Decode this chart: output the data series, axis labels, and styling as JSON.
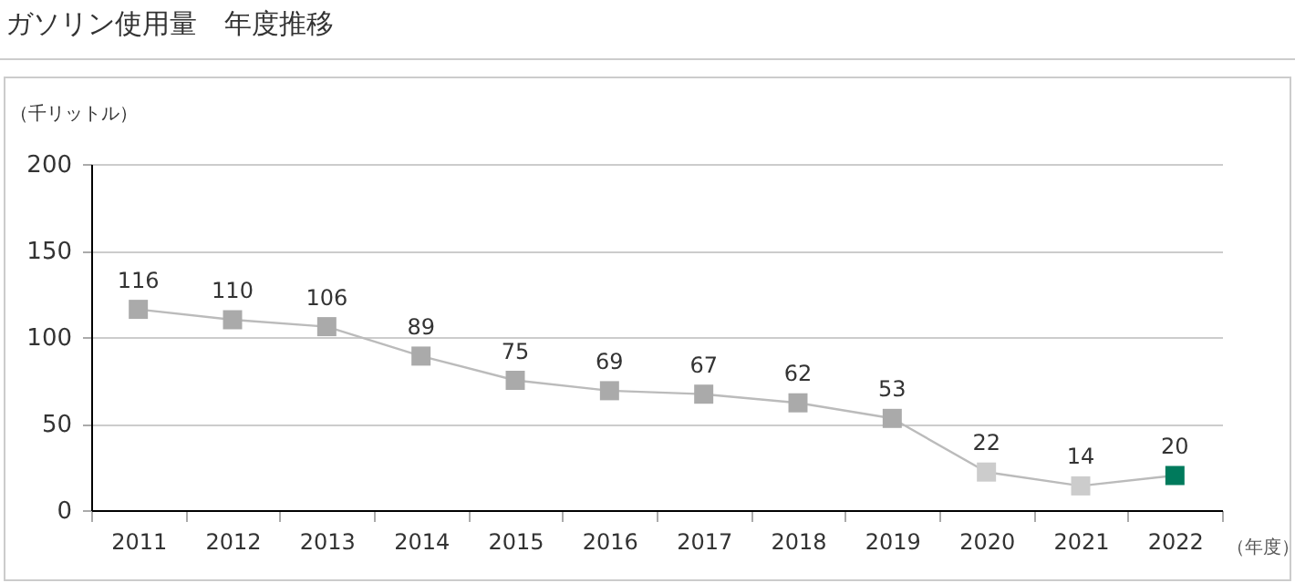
{
  "chart_data": {
    "type": "line",
    "title": "ガソリン使用量　年度推移",
    "ylabel": "（千リットル）",
    "xlabel": "（年度）",
    "categories": [
      "2011",
      "2012",
      "2013",
      "2014",
      "2015",
      "2016",
      "2017",
      "2018",
      "2019",
      "2020",
      "2021",
      "2022"
    ],
    "series": [
      {
        "color": "#bbbbbb",
        "colors": [
          "#aaaaaa",
          "#aaaaaa",
          "#aaaaaa",
          "#aaaaaa",
          "#aaaaaa",
          "#aaaaaa",
          "#aaaaaa",
          "#aaaaaa",
          "#aaaaaa",
          "#cccccc",
          "#cccccc",
          "#007a5c"
        ],
        "values": [
          116,
          110,
          106,
          89,
          75,
          69,
          67,
          62,
          53,
          22,
          14,
          20
        ]
      }
    ],
    "ylim": [
      0,
      200
    ],
    "yticks": [
      0,
      50,
      100,
      150,
      200
    ],
    "grid": "y",
    "marker": "square",
    "data_labels": true
  }
}
